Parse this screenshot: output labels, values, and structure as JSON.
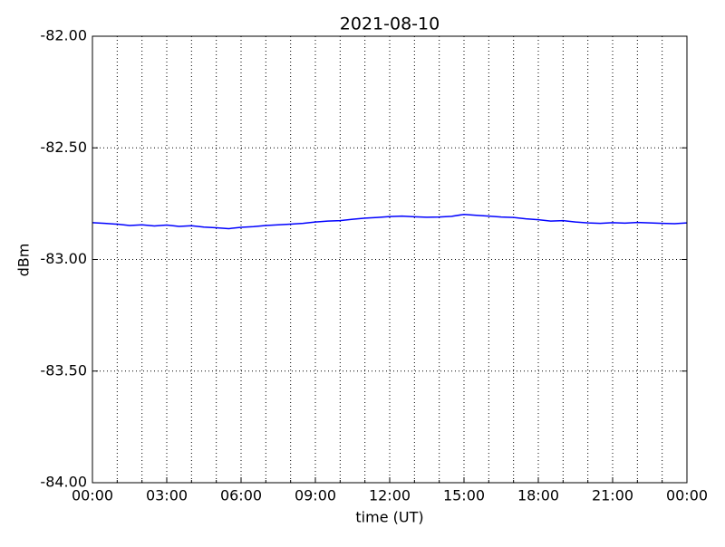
{
  "chart_data": {
    "type": "line",
    "title": "2021-08-10",
    "xlabel": "time (UT)",
    "ylabel": "dBm",
    "x": [
      0,
      0.5,
      1,
      1.5,
      2,
      2.5,
      3,
      3.5,
      4,
      4.5,
      5,
      5.5,
      6,
      6.5,
      7,
      7.5,
      8,
      8.5,
      9,
      9.5,
      10,
      10.5,
      11,
      11.5,
      12,
      12.5,
      13,
      13.5,
      14,
      14.5,
      15,
      15.5,
      16,
      16.5,
      17,
      17.5,
      18,
      18.5,
      19,
      19.5,
      20,
      20.5,
      21,
      21.5,
      22,
      22.5,
      23,
      23.5,
      24
    ],
    "series": [
      {
        "name": "dBm",
        "color": "#0000ff",
        "values": [
          -82.835,
          -82.838,
          -82.842,
          -82.848,
          -82.845,
          -82.85,
          -82.846,
          -82.852,
          -82.849,
          -82.855,
          -82.858,
          -82.862,
          -82.856,
          -82.853,
          -82.848,
          -82.845,
          -82.842,
          -82.838,
          -82.832,
          -82.828,
          -82.826,
          -82.82,
          -82.815,
          -82.812,
          -82.808,
          -82.806,
          -82.809,
          -82.811,
          -82.81,
          -82.807,
          -82.798,
          -82.802,
          -82.806,
          -82.81,
          -82.812,
          -82.818,
          -82.822,
          -82.828,
          -82.826,
          -82.832,
          -82.836,
          -82.838,
          -82.835,
          -82.837,
          -82.834,
          -82.836,
          -82.838,
          -82.84,
          -82.836
        ]
      }
    ],
    "xlim": [
      0,
      24
    ],
    "xticks": [
      {
        "value": 0,
        "label": "00:00"
      },
      {
        "value": 3,
        "label": "03:00"
      },
      {
        "value": 6,
        "label": "06:00"
      },
      {
        "value": 9,
        "label": "09:00"
      },
      {
        "value": 12,
        "label": "12:00"
      },
      {
        "value": 15,
        "label": "15:00"
      },
      {
        "value": 18,
        "label": "18:00"
      },
      {
        "value": 21,
        "label": "21:00"
      },
      {
        "value": 24,
        "label": "00:00"
      }
    ],
    "xminorticks": [
      1,
      2,
      4,
      5,
      7,
      8,
      10,
      11,
      13,
      14,
      16,
      17,
      19,
      20,
      22,
      23
    ],
    "ylim": [
      -84,
      -82
    ],
    "yticks": [
      {
        "value": -84,
        "label": "-84.00"
      },
      {
        "value": -83.5,
        "label": "-83.50"
      },
      {
        "value": -83,
        "label": "-83.00"
      },
      {
        "value": -82.5,
        "label": "-82.50"
      },
      {
        "value": -82,
        "label": "-82.00"
      }
    ],
    "grid": true
  }
}
